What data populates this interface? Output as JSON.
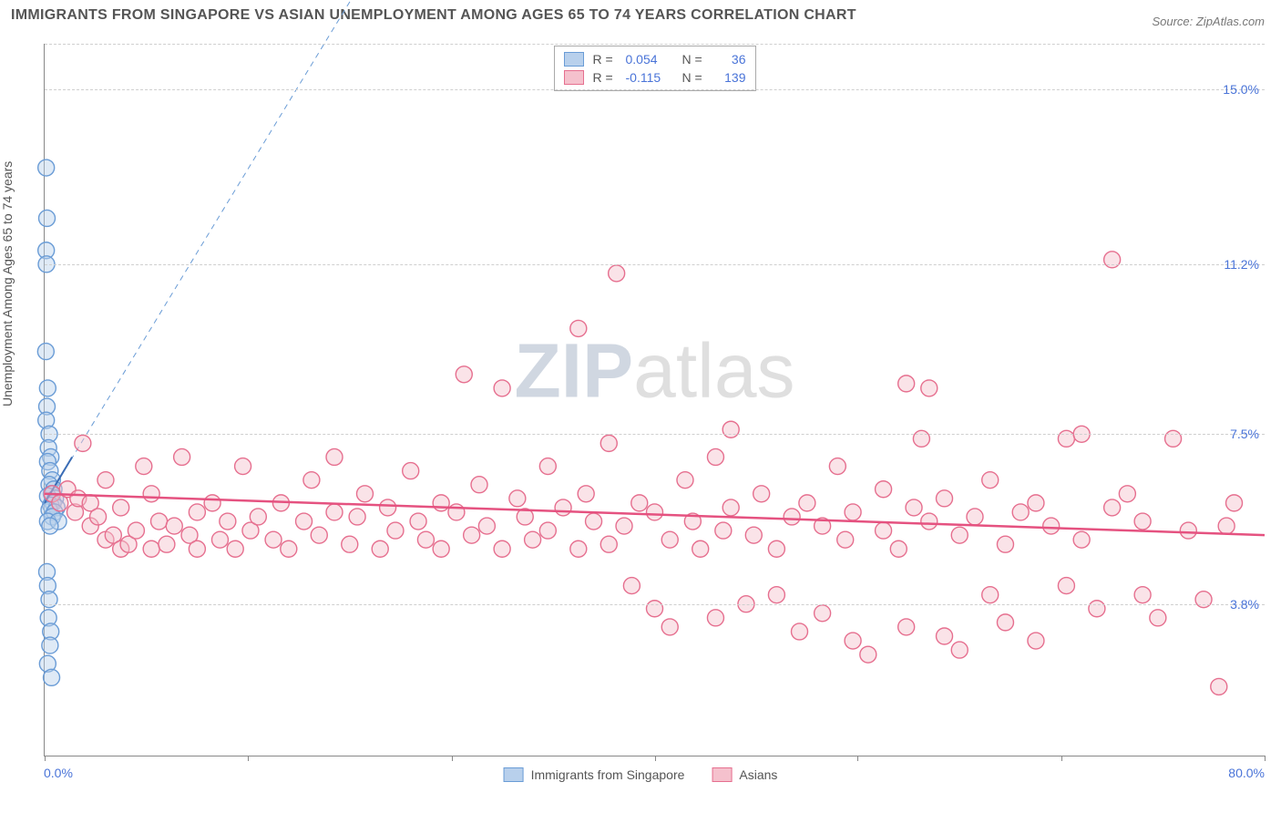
{
  "title": "IMMIGRANTS FROM SINGAPORE VS ASIAN UNEMPLOYMENT AMONG AGES 65 TO 74 YEARS CORRELATION CHART",
  "source": "Source: ZipAtlas.com",
  "ylabel": "Unemployment Among Ages 65 to 74 years",
  "watermark_a": "ZIP",
  "watermark_b": "atlas",
  "chart": {
    "type": "scatter",
    "xlim": [
      0,
      80
    ],
    "ylim": [
      0.5,
      16
    ],
    "x_min_label": "0.0%",
    "x_max_label": "80.0%",
    "y_ticks": [
      3.8,
      7.5,
      11.2,
      15.0
    ],
    "y_tick_labels": [
      "3.8%",
      "7.5%",
      "11.2%",
      "15.0%"
    ],
    "x_tick_positions": [
      0,
      13.3,
      26.7,
      40,
      53.3,
      66.7,
      80
    ],
    "background_color": "#ffffff",
    "grid_color": "#cfcfcf",
    "axis_color": "#888888",
    "tick_label_color": "#4a74d8",
    "marker_radius": 9,
    "marker_stroke_width": 1.4,
    "series": [
      {
        "id": "singapore",
        "label": "Immigrants from Singapore",
        "fill": "#b8d0ec",
        "stroke": "#6a9cd6",
        "fill_opacity": 0.45,
        "R": "0.054",
        "N": "36",
        "trend": {
          "x1": 0,
          "y1": 6.0,
          "x2": 1.8,
          "y2": 7.0,
          "color": "#3b6db5",
          "width": 2
        },
        "trend_ext": {
          "x1": 0,
          "y1": 6.0,
          "x2": 22,
          "y2": 18,
          "color": "#6a9cd6",
          "dash": "6,5",
          "width": 1
        },
        "points": [
          [
            0.1,
            13.3
          ],
          [
            0.15,
            12.2
          ],
          [
            0.1,
            11.5
          ],
          [
            0.12,
            11.2
          ],
          [
            0.08,
            9.3
          ],
          [
            0.2,
            8.5
          ],
          [
            0.15,
            8.1
          ],
          [
            0.1,
            7.8
          ],
          [
            0.3,
            7.5
          ],
          [
            0.25,
            7.2
          ],
          [
            0.4,
            7.0
          ],
          [
            0.2,
            6.9
          ],
          [
            0.35,
            6.7
          ],
          [
            0.5,
            6.5
          ],
          [
            0.3,
            6.4
          ],
          [
            0.6,
            6.3
          ],
          [
            0.45,
            6.2
          ],
          [
            0.2,
            6.15
          ],
          [
            0.7,
            6.1
          ],
          [
            0.55,
            6.0
          ],
          [
            0.4,
            5.95
          ],
          [
            0.8,
            5.9
          ],
          [
            0.3,
            5.85
          ],
          [
            0.65,
            5.8
          ],
          [
            0.5,
            5.7
          ],
          [
            0.2,
            5.6
          ],
          [
            0.9,
            5.6
          ],
          [
            0.35,
            5.5
          ],
          [
            0.15,
            4.5
          ],
          [
            0.2,
            4.2
          ],
          [
            0.3,
            3.9
          ],
          [
            0.25,
            3.5
          ],
          [
            0.4,
            3.2
          ],
          [
            0.35,
            2.9
          ],
          [
            0.2,
            2.5
          ],
          [
            0.45,
            2.2
          ]
        ]
      },
      {
        "id": "asians",
        "label": "Asians",
        "fill": "#f5c1cd",
        "stroke": "#e66f8f",
        "fill_opacity": 0.45,
        "R": "-0.115",
        "N": "139",
        "trend": {
          "x1": 0,
          "y1": 6.2,
          "x2": 80,
          "y2": 5.3,
          "color": "#e55280",
          "width": 2.5
        },
        "points": [
          [
            0.5,
            6.2
          ],
          [
            1,
            6.0
          ],
          [
            1.5,
            6.3
          ],
          [
            2,
            5.8
          ],
          [
            2.2,
            6.1
          ],
          [
            2.5,
            7.3
          ],
          [
            3,
            5.5
          ],
          [
            3,
            6.0
          ],
          [
            3.5,
            5.7
          ],
          [
            4,
            6.5
          ],
          [
            4,
            5.2
          ],
          [
            4.5,
            5.3
          ],
          [
            5,
            5.9
          ],
          [
            5,
            5.0
          ],
          [
            5.5,
            5.1
          ],
          [
            6,
            5.4
          ],
          [
            6.5,
            6.8
          ],
          [
            7,
            6.2
          ],
          [
            7,
            5.0
          ],
          [
            7.5,
            5.6
          ],
          [
            8,
            5.1
          ],
          [
            8.5,
            5.5
          ],
          [
            9,
            7.0
          ],
          [
            9.5,
            5.3
          ],
          [
            10,
            5.8
          ],
          [
            10,
            5.0
          ],
          [
            11,
            6.0
          ],
          [
            11.5,
            5.2
          ],
          [
            12,
            5.6
          ],
          [
            12.5,
            5.0
          ],
          [
            13,
            6.8
          ],
          [
            13.5,
            5.4
          ],
          [
            14,
            5.7
          ],
          [
            15,
            5.2
          ],
          [
            15.5,
            6.0
          ],
          [
            16,
            5.0
          ],
          [
            17,
            5.6
          ],
          [
            17.5,
            6.5
          ],
          [
            18,
            5.3
          ],
          [
            19,
            5.8
          ],
          [
            19,
            7.0
          ],
          [
            20,
            5.1
          ],
          [
            20.5,
            5.7
          ],
          [
            21,
            6.2
          ],
          [
            22,
            5.0
          ],
          [
            22.5,
            5.9
          ],
          [
            23,
            5.4
          ],
          [
            24,
            6.7
          ],
          [
            24.5,
            5.6
          ],
          [
            25,
            5.2
          ],
          [
            26,
            6.0
          ],
          [
            26,
            5.0
          ],
          [
            27,
            5.8
          ],
          [
            27.5,
            8.8
          ],
          [
            28,
            5.3
          ],
          [
            28.5,
            6.4
          ],
          [
            29,
            5.5
          ],
          [
            30,
            5.0
          ],
          [
            30,
            8.5
          ],
          [
            31,
            6.1
          ],
          [
            31.5,
            5.7
          ],
          [
            32,
            5.2
          ],
          [
            33,
            6.8
          ],
          [
            33,
            5.4
          ],
          [
            34,
            5.9
          ],
          [
            35,
            5.0
          ],
          [
            35,
            9.8
          ],
          [
            35.5,
            6.2
          ],
          [
            36,
            5.6
          ],
          [
            37,
            5.1
          ],
          [
            37,
            7.3
          ],
          [
            37.5,
            11.0
          ],
          [
            38,
            5.5
          ],
          [
            38.5,
            4.2
          ],
          [
            39,
            6.0
          ],
          [
            40,
            3.7
          ],
          [
            40,
            5.8
          ],
          [
            41,
            3.3
          ],
          [
            41,
            5.2
          ],
          [
            42,
            6.5
          ],
          [
            42.5,
            5.6
          ],
          [
            43,
            5.0
          ],
          [
            44,
            3.5
          ],
          [
            44,
            7.0
          ],
          [
            44.5,
            5.4
          ],
          [
            45,
            7.6
          ],
          [
            45,
            5.9
          ],
          [
            46,
            3.8
          ],
          [
            46.5,
            5.3
          ],
          [
            47,
            6.2
          ],
          [
            48,
            5.0
          ],
          [
            48,
            4.0
          ],
          [
            49,
            5.7
          ],
          [
            49.5,
            3.2
          ],
          [
            50,
            6.0
          ],
          [
            51,
            5.5
          ],
          [
            51,
            3.6
          ],
          [
            52,
            6.8
          ],
          [
            52.5,
            5.2
          ],
          [
            53,
            3.0
          ],
          [
            53,
            5.8
          ],
          [
            54,
            2.7
          ],
          [
            55,
            5.4
          ],
          [
            55,
            6.3
          ],
          [
            56,
            5.0
          ],
          [
            56.5,
            3.3
          ],
          [
            56.5,
            8.6
          ],
          [
            57,
            5.9
          ],
          [
            57.5,
            7.4
          ],
          [
            58,
            5.6
          ],
          [
            58,
            8.5
          ],
          [
            59,
            3.1
          ],
          [
            59,
            6.1
          ],
          [
            60,
            5.3
          ],
          [
            60,
            2.8
          ],
          [
            61,
            5.7
          ],
          [
            62,
            4.0
          ],
          [
            62,
            6.5
          ],
          [
            63,
            5.1
          ],
          [
            63,
            3.4
          ],
          [
            64,
            5.8
          ],
          [
            65,
            6.0
          ],
          [
            65,
            3.0
          ],
          [
            66,
            5.5
          ],
          [
            67,
            4.2
          ],
          [
            67,
            7.4
          ],
          [
            68,
            5.2
          ],
          [
            68,
            7.5
          ],
          [
            69,
            3.7
          ],
          [
            70,
            11.3
          ],
          [
            70,
            5.9
          ],
          [
            71,
            6.2
          ],
          [
            72,
            4.0
          ],
          [
            72,
            5.6
          ],
          [
            73,
            3.5
          ],
          [
            74,
            7.4
          ],
          [
            75,
            5.4
          ],
          [
            76,
            3.9
          ],
          [
            77,
            2.0
          ],
          [
            77.5,
            5.5
          ],
          [
            78,
            6.0
          ]
        ]
      }
    ]
  },
  "legend_top": {
    "R_label": "R =",
    "N_label": "N ="
  },
  "legend_bottom": [
    {
      "ref": "singapore"
    },
    {
      "ref": "asians"
    }
  ]
}
